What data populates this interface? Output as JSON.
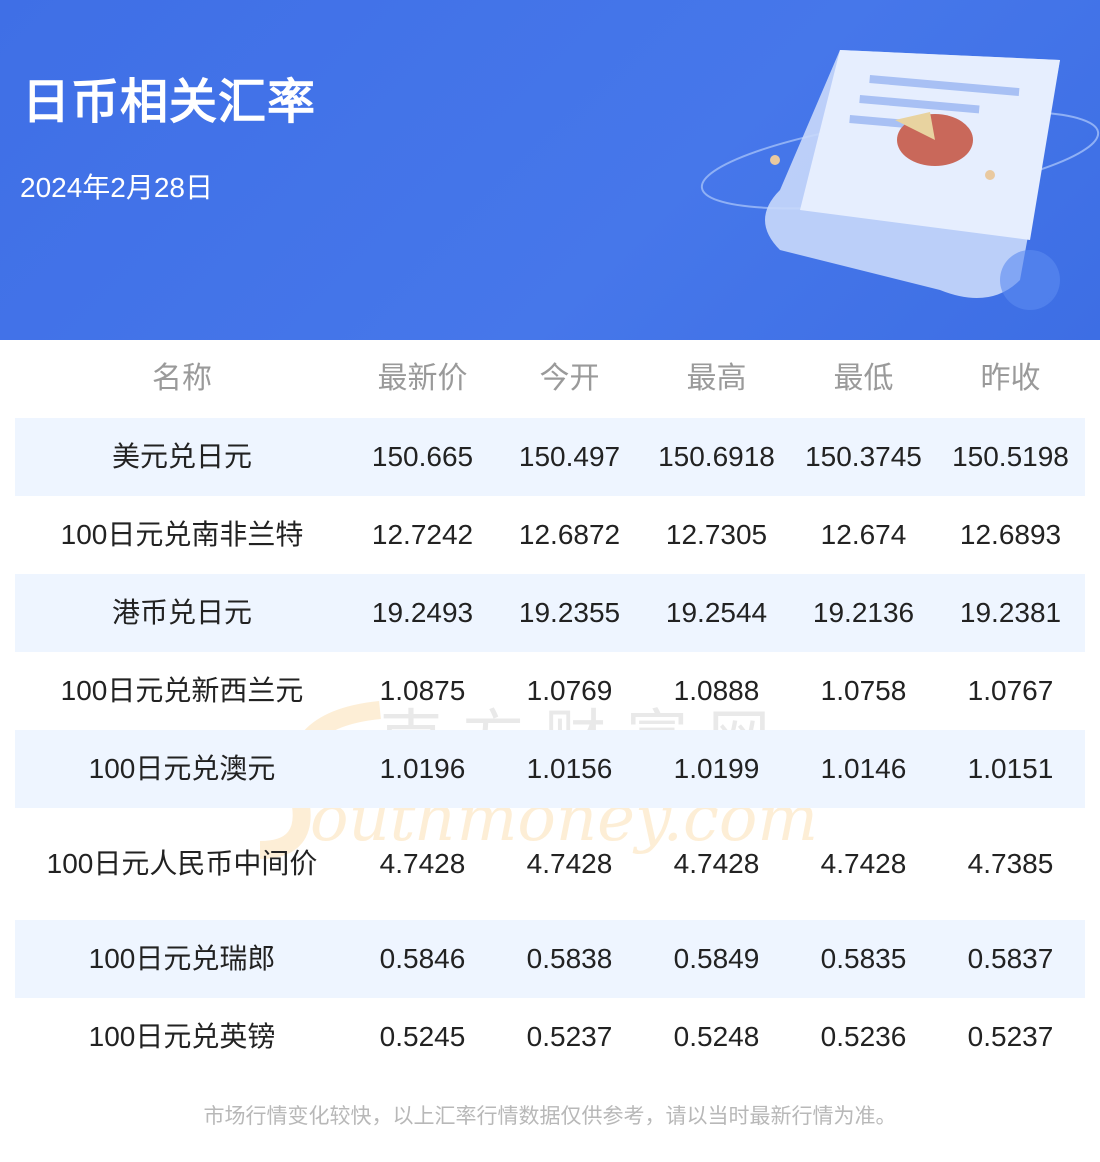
{
  "header": {
    "title": "日币相关汇率",
    "date": "2024年2月28日"
  },
  "table": {
    "columns": [
      "名称",
      "最新价",
      "今开",
      "最高",
      "最低",
      "昨收"
    ],
    "rows": [
      [
        "美元兑日元",
        "150.665",
        "150.497",
        "150.6918",
        "150.3745",
        "150.5198"
      ],
      [
        "100日元兑南非兰特",
        "12.7242",
        "12.6872",
        "12.7305",
        "12.674",
        "12.6893"
      ],
      [
        "港币兑日元",
        "19.2493",
        "19.2355",
        "19.2544",
        "19.2136",
        "19.2381"
      ],
      [
        "100日元兑新西兰元",
        "1.0875",
        "1.0769",
        "1.0888",
        "1.0758",
        "1.0767"
      ],
      [
        "100日元兑澳元",
        "1.0196",
        "1.0156",
        "1.0199",
        "1.0146",
        "1.0151"
      ],
      [
        "100日元人民币中间价",
        "4.7428",
        "4.7428",
        "4.7428",
        "4.7428",
        "4.7385"
      ],
      [
        "100日元兑瑞郎",
        "0.5846",
        "0.5838",
        "0.5849",
        "0.5835",
        "0.5837"
      ],
      [
        "100日元兑英镑",
        "0.5245",
        "0.5237",
        "0.5248",
        "0.5236",
        "0.5237"
      ]
    ]
  },
  "watermark": {
    "cn": "南方财富网",
    "en": "southmoney.com"
  },
  "footer": "市场行情变化较快，以上汇率行情数据仅供参考，请以当时最新行情为准。",
  "colors": {
    "banner": "#4374e8",
    "row_alt": "#eef5ff",
    "header_text": "#9a9a9a"
  }
}
